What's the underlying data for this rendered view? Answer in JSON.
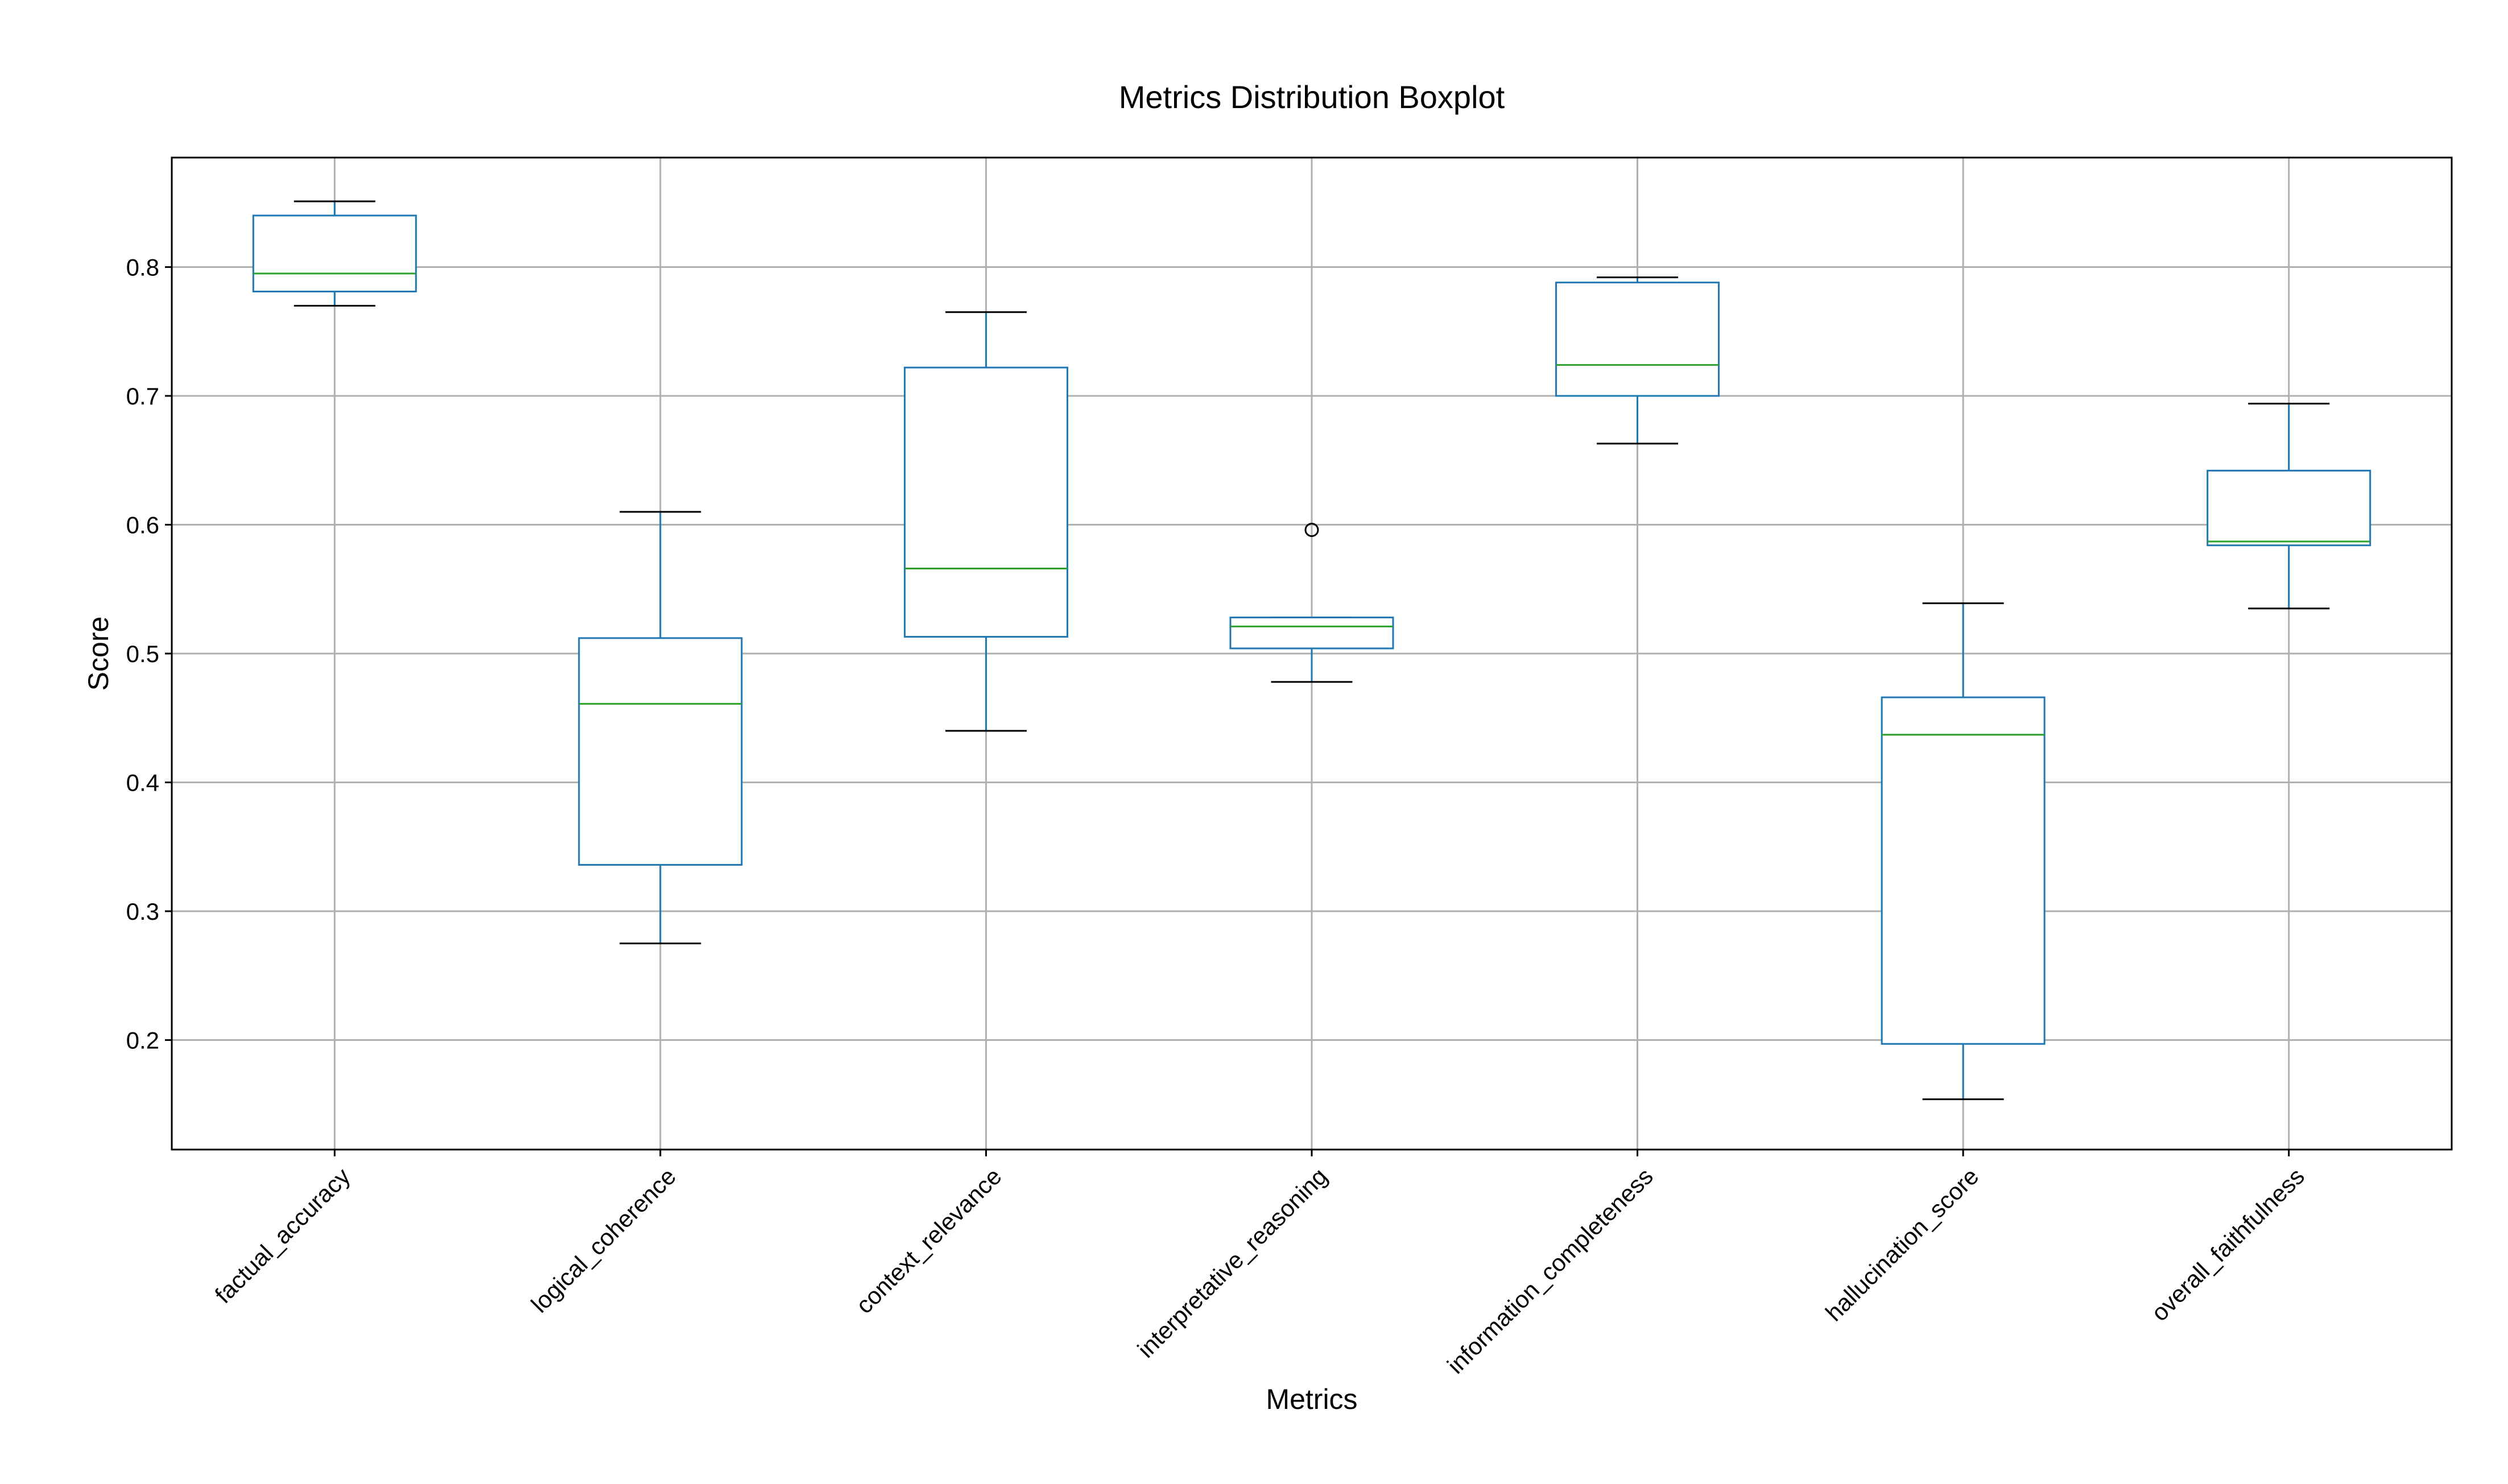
{
  "chart_data": {
    "type": "boxplot",
    "title": "Metrics Distribution Boxplot",
    "xlabel": "Metrics",
    "ylabel": "Score",
    "ylim": [
      0.115,
      0.885
    ],
    "yticks": [
      0.2,
      0.3,
      0.4,
      0.5,
      0.6,
      0.7,
      0.8
    ],
    "ytick_labels": [
      "0.2",
      "0.3",
      "0.4",
      "0.5",
      "0.6",
      "0.7",
      "0.8"
    ],
    "grid": true,
    "colors": {
      "box": "#1f77b4",
      "median": "#2ca02c",
      "cap": "#000000",
      "grid": "#b0b0b0",
      "outlier": "#000000"
    },
    "categories": [
      "factual_accuracy",
      "logical_coherence",
      "context_relevance",
      "interpretative_reasoning",
      "information_completeness",
      "hallucination_score",
      "overall_faithfulness"
    ],
    "boxes": [
      {
        "whisker_low": 0.77,
        "q1": 0.781,
        "median": 0.795,
        "q3": 0.84,
        "whisker_high": 0.851,
        "outliers": []
      },
      {
        "whisker_low": 0.275,
        "q1": 0.336,
        "median": 0.461,
        "q3": 0.512,
        "whisker_high": 0.61,
        "outliers": []
      },
      {
        "whisker_low": 0.44,
        "q1": 0.513,
        "median": 0.566,
        "q3": 0.722,
        "whisker_high": 0.765,
        "outliers": []
      },
      {
        "whisker_low": 0.478,
        "q1": 0.504,
        "median": 0.521,
        "q3": 0.528,
        "whisker_high": 0.528,
        "outliers": [
          0.596
        ]
      },
      {
        "whisker_low": 0.663,
        "q1": 0.7,
        "median": 0.724,
        "q3": 0.788,
        "whisker_high": 0.792,
        "outliers": []
      },
      {
        "whisker_low": 0.154,
        "q1": 0.197,
        "median": 0.437,
        "q3": 0.466,
        "whisker_high": 0.539,
        "outliers": []
      },
      {
        "whisker_low": 0.535,
        "q1": 0.584,
        "median": 0.587,
        "q3": 0.642,
        "whisker_high": 0.694,
        "outliers": []
      }
    ]
  }
}
